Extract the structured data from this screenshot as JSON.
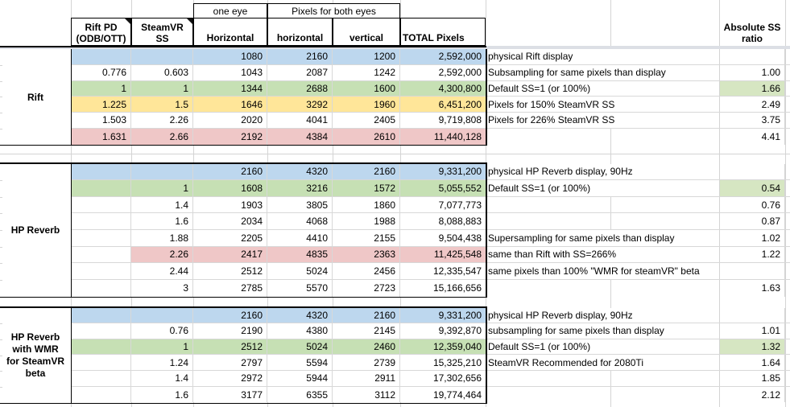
{
  "header": {
    "one_eye": "one eye",
    "both_eyes": "Pixels for both eyes",
    "col_pd_l1": "Rift PD",
    "col_pd_l2": "(ODB/OTT)",
    "col_ss_l1": "SteamVR",
    "col_ss_l2": "SS",
    "col_one_eye_h": "Horizontal",
    "col_both_h": "horizontal",
    "col_both_v": "vertical",
    "col_total": "TOTAL Pixels",
    "ratio_l1": "Absolute SS",
    "ratio_l2": "ratio"
  },
  "colors": {
    "blue": "#bdd7ee",
    "green": "#c6e0b4",
    "yellow": "#ffe699",
    "pink": "#efc7c7",
    "ratio_green": "#d6e6c2",
    "gridline": "#d4d4d4"
  },
  "sections": [
    {
      "label_lines": [
        "Rift"
      ],
      "rows": [
        {
          "pd": "",
          "ss": "",
          "h1": "1080",
          "hb": "2160",
          "vb": "1200",
          "total": "2,592,000",
          "note": "physical Rift display",
          "ratio": "",
          "fill": "blue"
        },
        {
          "pd": "0.776",
          "ss": "0.603",
          "h1": "1043",
          "hb": "2087",
          "vb": "1242",
          "total": "2,592,000",
          "note": "Subsampling for same pixels than display",
          "ratio": "1.00",
          "fill": "none"
        },
        {
          "pd": "1",
          "ss": "1",
          "h1": "1344",
          "hb": "2688",
          "vb": "1600",
          "total": "4,300,800",
          "note": "Default SS=1 (or 100%)",
          "ratio": "1.66",
          "fill": "green",
          "ratio_fill": "green"
        },
        {
          "pd": "1.225",
          "ss": "1.5",
          "h1": "1646",
          "hb": "3292",
          "vb": "1960",
          "total": "6,451,200",
          "note": "Pixels for 150% SteamVR SS",
          "ratio": "2.49",
          "fill": "yellow"
        },
        {
          "pd": "1.503",
          "ss": "2.26",
          "h1": "2020",
          "hb": "4041",
          "vb": "2405",
          "total": "9,719,808",
          "note": "Pixels for 226% SteamVR SS",
          "ratio": "3.75",
          "fill": "none"
        },
        {
          "pd": "1.631",
          "ss": "2.66",
          "h1": "2192",
          "hb": "4384",
          "vb": "2610",
          "total": "11,440,128",
          "note": "",
          "ratio": "4.41",
          "fill": "pink"
        }
      ]
    },
    {
      "label_lines": [
        "HP Reverb"
      ],
      "rows": [
        {
          "pd": "",
          "ss": "",
          "h1": "2160",
          "hb": "4320",
          "vb": "2160",
          "total": "9,331,200",
          "note": "physical HP Reverb display, 90Hz",
          "ratio": "",
          "fill": "blue"
        },
        {
          "pd": "",
          "ss": "1",
          "h1": "1608",
          "hb": "3216",
          "vb": "1572",
          "total": "5,055,552",
          "note": "Default SS=1 (or 100%)",
          "ratio": "0.54",
          "fill": "green",
          "ratio_fill": "green"
        },
        {
          "pd": "",
          "ss": "1.4",
          "h1": "1903",
          "hb": "3805",
          "vb": "1860",
          "total": "7,077,773",
          "note": "",
          "ratio": "0.76",
          "fill": "none"
        },
        {
          "pd": "",
          "ss": "1.6",
          "h1": "2034",
          "hb": "4068",
          "vb": "1988",
          "total": "8,088,883",
          "note": "",
          "ratio": "0.87",
          "fill": "none"
        },
        {
          "pd": "",
          "ss": "1.88",
          "h1": "2205",
          "hb": "4410",
          "vb": "2155",
          "total": "9,504,438",
          "note": "Supersampling for same pixels than display",
          "ratio": "1.02",
          "fill": "none"
        },
        {
          "pd": "",
          "ss": "2.26",
          "h1": "2417",
          "hb": "4835",
          "vb": "2363",
          "total": "11,425,548",
          "note": "same than Rift with SS=266%",
          "ratio": "1.22",
          "fill": "pink",
          "fill_from": "ss"
        },
        {
          "pd": "",
          "ss": "2.44",
          "h1": "2512",
          "hb": "5024",
          "vb": "2456",
          "total": "12,335,547",
          "note": "same pixels than 100% \"WMR for steamVR\" beta",
          "ratio": "",
          "fill": "none"
        },
        {
          "pd": "",
          "ss": "3",
          "h1": "2785",
          "hb": "5570",
          "vb": "2723",
          "total": "15,166,656",
          "note": "",
          "ratio": "1.63",
          "fill": "none"
        }
      ]
    },
    {
      "label_lines": [
        "HP Reverb",
        "with WMR",
        "for SteamVR",
        "beta"
      ],
      "rows": [
        {
          "pd": "",
          "ss": "",
          "h1": "2160",
          "hb": "4320",
          "vb": "2160",
          "total": "9,331,200",
          "note": "physical HP Reverb display, 90Hz",
          "ratio": "",
          "fill": "blue"
        },
        {
          "pd": "",
          "ss": "0.76",
          "h1": "2190",
          "hb": "4380",
          "vb": "2145",
          "total": "9,392,870",
          "note": "subsampling for same pixels than display",
          "ratio": "1.01",
          "fill": "none"
        },
        {
          "pd": "",
          "ss": "1",
          "h1": "2512",
          "hb": "5024",
          "vb": "2460",
          "total": "12,359,040",
          "note": "Default SS=1 (or 100%)",
          "ratio": "1.32",
          "fill": "green",
          "ratio_fill": "green"
        },
        {
          "pd": "",
          "ss": "1.24",
          "h1": "2797",
          "hb": "5594",
          "vb": "2739",
          "total": "15,325,210",
          "note": "SteamVR Recommended for 2080Ti",
          "ratio": "1.64",
          "fill": "none"
        },
        {
          "pd": "",
          "ss": "1.4",
          "h1": "2972",
          "hb": "5944",
          "vb": "2911",
          "total": "17,302,656",
          "note": "",
          "ratio": "1.85",
          "fill": "none"
        },
        {
          "pd": "",
          "ss": "1.6",
          "h1": "3177",
          "hb": "6355",
          "vb": "3112",
          "total": "19,774,464",
          "note": "",
          "ratio": "2.12",
          "fill": "none"
        }
      ]
    }
  ]
}
